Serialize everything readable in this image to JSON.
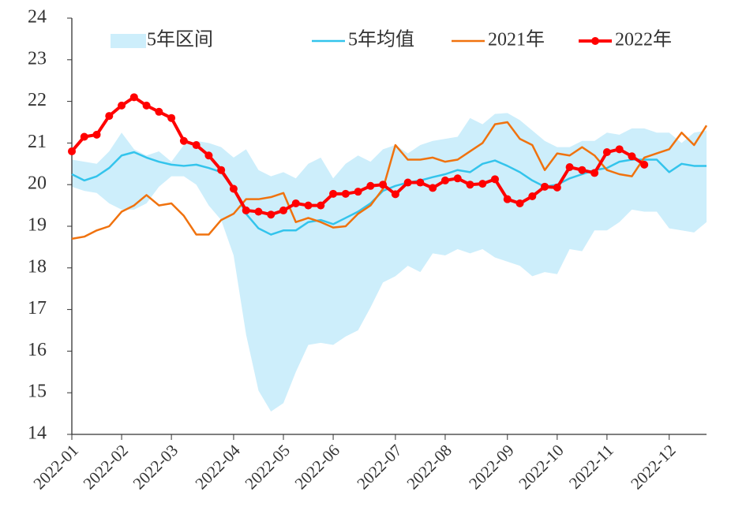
{
  "chart_data": {
    "type": "line",
    "categories": [
      "2022-01",
      null,
      null,
      null,
      "2022-02",
      null,
      null,
      null,
      "2022-03",
      null,
      null,
      null,
      null,
      "2022-04",
      null,
      null,
      null,
      "2022-05",
      null,
      null,
      null,
      "2022-06",
      null,
      null,
      null,
      null,
      "2022-07",
      null,
      null,
      null,
      "2022-08",
      null,
      null,
      null,
      null,
      "2022-09",
      null,
      null,
      null,
      "2022-10",
      null,
      null,
      null,
      "2022-11",
      null,
      null,
      null,
      null,
      "2022-12",
      null,
      null,
      null
    ],
    "ylim": [
      14,
      24
    ],
    "yticks": [
      14,
      15,
      16,
      17,
      18,
      19,
      20,
      21,
      22,
      23,
      24
    ],
    "series": [
      {
        "name": "5年区间",
        "type": "band",
        "color": "#cdeefb",
        "high": [
          20.6,
          20.55,
          20.5,
          20.8,
          21.25,
          20.85,
          20.7,
          20.8,
          20.55,
          20.95,
          21.05,
          21.0,
          20.9,
          20.65,
          20.85,
          20.35,
          20.2,
          20.3,
          20.15,
          20.5,
          20.65,
          20.15,
          20.5,
          20.7,
          20.55,
          20.85,
          20.95,
          20.75,
          20.95,
          21.05,
          21.1,
          21.15,
          21.6,
          21.45,
          21.7,
          21.72,
          21.55,
          21.3,
          21.05,
          20.9,
          20.9,
          21.05,
          21.05,
          21.25,
          21.2,
          21.35,
          21.35,
          21.25,
          21.25,
          21.0,
          21.25,
          21.3
        ],
        "low": [
          19.95,
          19.85,
          19.8,
          19.55,
          19.4,
          19.4,
          19.55,
          19.95,
          20.2,
          20.2,
          20.0,
          19.5,
          19.15,
          18.3,
          16.4,
          15.05,
          14.55,
          14.75,
          15.5,
          16.15,
          16.2,
          16.15,
          16.35,
          16.5,
          17.05,
          17.65,
          17.8,
          18.05,
          17.9,
          18.35,
          18.3,
          18.45,
          18.35,
          18.45,
          18.25,
          18.15,
          18.05,
          17.8,
          17.9,
          17.85,
          18.45,
          18.4,
          18.9,
          18.9,
          19.1,
          19.4,
          19.35,
          19.35,
          18.95,
          18.9,
          18.85,
          19.1
        ]
      },
      {
        "name": "5年均值",
        "type": "line",
        "color": "#33c4ec",
        "values": [
          20.25,
          20.1,
          20.2,
          20.4,
          20.7,
          20.78,
          20.65,
          20.55,
          20.48,
          20.45,
          20.48,
          20.4,
          20.3,
          19.9,
          19.3,
          18.95,
          18.8,
          18.9,
          18.9,
          19.1,
          19.15,
          19.05,
          19.2,
          19.35,
          19.55,
          19.85,
          19.97,
          20.05,
          20.1,
          20.18,
          20.25,
          20.35,
          20.3,
          20.5,
          20.58,
          20.45,
          20.3,
          20.1,
          19.95,
          20.0,
          20.15,
          20.25,
          20.35,
          20.4,
          20.55,
          20.6,
          20.6,
          20.6,
          20.3,
          20.5,
          20.45,
          20.45
        ]
      },
      {
        "name": "2021年",
        "type": "line",
        "color": "#f0720e",
        "values": [
          18.7,
          18.75,
          18.9,
          19.0,
          19.35,
          19.5,
          19.75,
          19.5,
          19.55,
          19.25,
          18.8,
          18.8,
          19.15,
          19.3,
          19.65,
          19.65,
          19.7,
          19.8,
          19.1,
          19.2,
          19.1,
          18.97,
          19.0,
          19.3,
          19.5,
          19.9,
          20.95,
          20.6,
          20.6,
          20.65,
          20.55,
          20.6,
          20.8,
          21.0,
          21.45,
          21.5,
          21.1,
          20.95,
          20.35,
          20.75,
          20.7,
          20.9,
          20.7,
          20.35,
          20.25,
          20.2,
          20.65,
          20.75,
          20.85,
          21.25,
          20.95,
          21.42
        ]
      },
      {
        "name": "2022年",
        "type": "line-marker",
        "color": "#ff0000",
        "values": [
          20.8,
          21.15,
          21.2,
          21.65,
          21.9,
          22.1,
          21.9,
          21.75,
          21.6,
          21.05,
          20.95,
          20.7,
          20.35,
          19.9,
          19.38,
          19.35,
          19.28,
          19.38,
          19.55,
          19.5,
          19.5,
          19.78,
          19.78,
          19.83,
          19.97,
          20.0,
          19.77,
          20.05,
          20.05,
          19.92,
          20.1,
          20.15,
          20.0,
          20.02,
          20.13,
          19.65,
          19.55,
          19.72,
          19.95,
          19.93,
          20.42,
          20.35,
          20.28,
          20.78,
          20.85,
          20.68,
          20.48,
          null,
          null,
          null,
          null,
          null
        ]
      }
    ]
  }
}
